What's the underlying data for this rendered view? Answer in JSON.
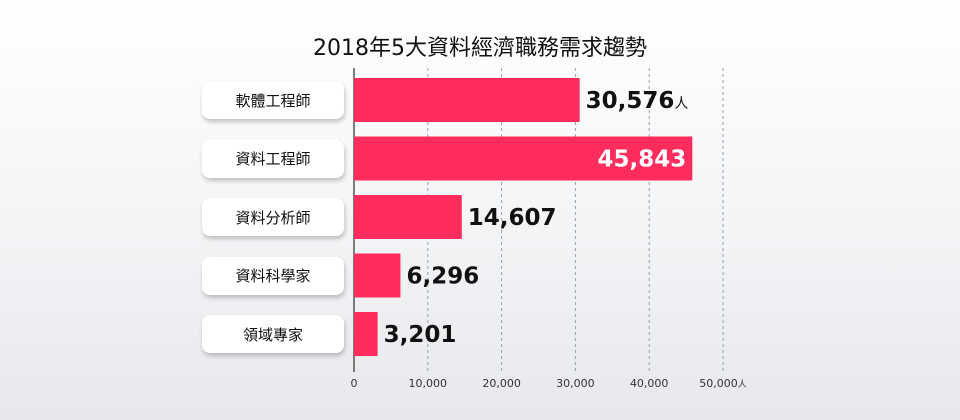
{
  "chart_data": {
    "type": "bar",
    "orientation": "horizontal",
    "title": "2018年5大資料經濟職務需求趨勢",
    "categories": [
      "軟體工程師",
      "資料工程師",
      "資料分析師",
      "資料科學家",
      "領域專家"
    ],
    "values": [
      30576,
      45843,
      14607,
      6296,
      3201
    ],
    "value_labels": [
      "30,576",
      "45,843",
      "14,607",
      "6,296",
      "3,201"
    ],
    "first_value_unit": "人",
    "x_ticks": [
      0,
      10000,
      20000,
      30000,
      40000,
      50000
    ],
    "x_tick_labels": [
      "0",
      "10,000",
      "20,000",
      "30,000",
      "40,000",
      "50,000"
    ],
    "x_axis_unit": "人",
    "xlim": [
      0,
      50000
    ],
    "grid": true,
    "bar_color": "#ff2d5e",
    "inside_label_color": "#ffffff",
    "outside_label_color": "#111111"
  }
}
